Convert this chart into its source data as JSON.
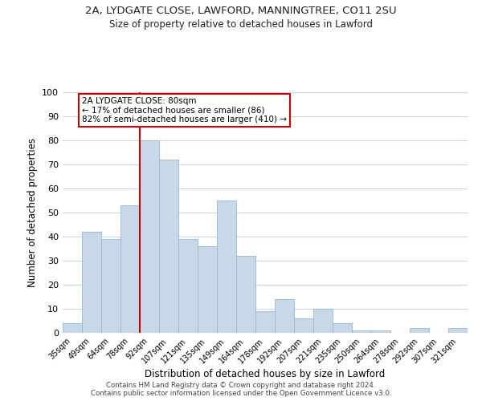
{
  "title1": "2A, LYDGATE CLOSE, LAWFORD, MANNINGTREE, CO11 2SU",
  "title2": "Size of property relative to detached houses in Lawford",
  "xlabel": "Distribution of detached houses by size in Lawford",
  "ylabel": "Number of detached properties",
  "categories": [
    "35sqm",
    "49sqm",
    "64sqm",
    "78sqm",
    "92sqm",
    "107sqm",
    "121sqm",
    "135sqm",
    "149sqm",
    "164sqm",
    "178sqm",
    "192sqm",
    "207sqm",
    "221sqm",
    "235sqm",
    "250sqm",
    "264sqm",
    "278sqm",
    "292sqm",
    "307sqm",
    "321sqm"
  ],
  "values": [
    4,
    42,
    39,
    53,
    80,
    72,
    39,
    36,
    55,
    32,
    9,
    14,
    6,
    10,
    4,
    1,
    1,
    0,
    2,
    0,
    2
  ],
  "bar_color": "#c8d8e8",
  "bar_edge_color": "#a0bcd4",
  "grid_color": "#c8d8e8",
  "vline_x": 3.5,
  "vline_color": "#cc0000",
  "annotation_title": "2A LYDGATE CLOSE: 80sqm",
  "annotation_line1": "← 17% of detached houses are smaller (86)",
  "annotation_line2": "82% of semi-detached houses are larger (410) →",
  "annotation_box_color": "#ffffff",
  "annotation_box_edge": "#cc0000",
  "ylim": [
    0,
    100
  ],
  "footer1": "Contains HM Land Registry data © Crown copyright and database right 2024.",
  "footer2": "Contains public sector information licensed under the Open Government Licence v3.0."
}
